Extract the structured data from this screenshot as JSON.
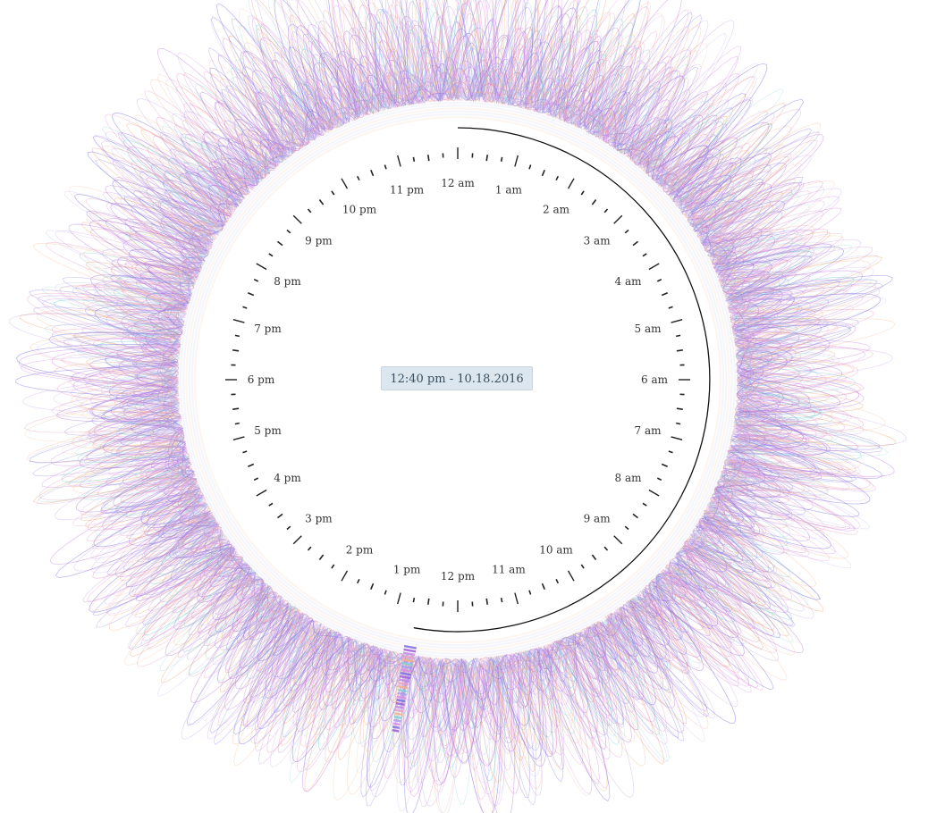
{
  "chart_data": {
    "type": "radial-clock",
    "hour_labels": [
      "12 am",
      "1 am",
      "2 am",
      "3 am",
      "4 am",
      "5 am",
      "6 am",
      "7 am",
      "8 am",
      "9 am",
      "10 am",
      "11 am",
      "12 pm",
      "1 pm",
      "2 pm",
      "3 pm",
      "4 pm",
      "5 pm",
      "6 pm",
      "7 pm",
      "8 pm",
      "9 pm",
      "10 pm",
      "11 pm"
    ],
    "hours_on_dial": 24,
    "ticks_per_hour": 4,
    "elapsed_hours": 12.67,
    "series_colors": [
      "#7b6fe0",
      "#9c5fd6",
      "#c486e6",
      "#e9a0c8",
      "#f2b287",
      "#7fd0d6",
      "#a99cf0",
      "#d88be8"
    ]
  },
  "readout": {
    "time_label": "12:40 pm - 10.18.2016"
  }
}
